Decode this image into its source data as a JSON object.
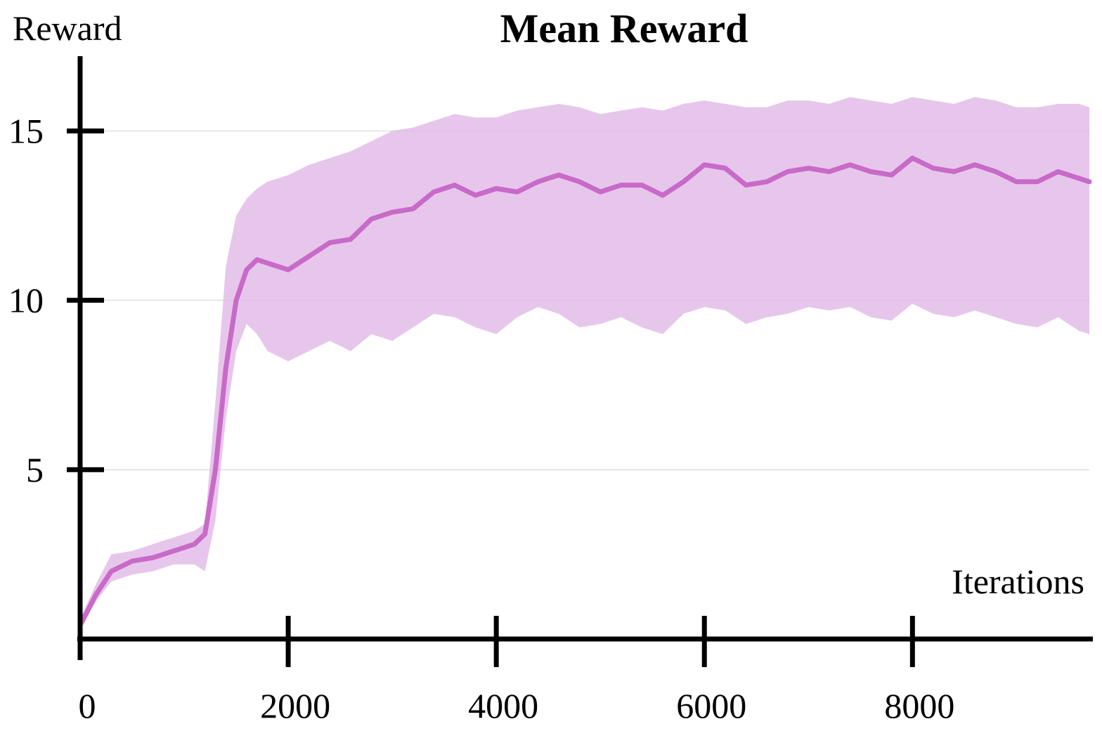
{
  "chart_data": {
    "type": "line",
    "title": "Mean Reward",
    "xlabel": "Iterations",
    "ylabel": "Reward",
    "xlim": [
      0,
      9700
    ],
    "ylim": [
      0,
      17
    ],
    "xticks": [
      0,
      2000,
      4000,
      6000,
      8000
    ],
    "yticks": [
      5,
      10,
      15
    ],
    "grid": true,
    "colors": {
      "mean": "#c86ac8",
      "band": "#dfb3e5"
    },
    "series": [
      {
        "x": [
          0,
          150,
          300,
          500,
          700,
          900,
          1100,
          1200,
          1300,
          1400,
          1500,
          1600,
          1700,
          1800,
          2000,
          2200,
          2400,
          2600,
          2800,
          3000,
          3200,
          3400,
          3600,
          3800,
          4000,
          4200,
          4400,
          4600,
          4800,
          5000,
          5200,
          5400,
          5600,
          5800,
          6000,
          6200,
          6400,
          6600,
          6800,
          7000,
          7200,
          7400,
          7600,
          7800,
          8000,
          8200,
          8400,
          8600,
          8800,
          9000,
          9200,
          9400,
          9600,
          9700
        ],
        "values": [
          0.4,
          1.3,
          2.0,
          2.3,
          2.4,
          2.6,
          2.8,
          3.1,
          5.0,
          8.0,
          10.0,
          10.9,
          11.2,
          11.1,
          10.9,
          11.3,
          11.7,
          11.8,
          12.4,
          12.6,
          12.7,
          13.2,
          13.4,
          13.1,
          13.3,
          13.2,
          13.5,
          13.7,
          13.5,
          13.2,
          13.4,
          13.4,
          13.1,
          13.5,
          14.0,
          13.9,
          13.4,
          13.5,
          13.8,
          13.9,
          13.8,
          14.0,
          13.8,
          13.7,
          14.2,
          13.9,
          13.8,
          14.0,
          13.8,
          13.5,
          13.5,
          13.8,
          13.6,
          13.5
        ],
        "lower": [
          0.3,
          1.1,
          1.7,
          1.9,
          2.0,
          2.2,
          2.2,
          2.0,
          3.5,
          6.5,
          8.5,
          9.3,
          9.0,
          8.5,
          8.2,
          8.5,
          8.8,
          8.5,
          9.0,
          8.8,
          9.2,
          9.6,
          9.5,
          9.2,
          9.0,
          9.5,
          9.8,
          9.6,
          9.2,
          9.3,
          9.5,
          9.2,
          9.0,
          9.6,
          9.8,
          9.7,
          9.3,
          9.5,
          9.6,
          9.8,
          9.7,
          9.8,
          9.5,
          9.4,
          9.9,
          9.6,
          9.5,
          9.7,
          9.5,
          9.3,
          9.2,
          9.5,
          9.1,
          9.0
        ],
        "upper": [
          0.6,
          1.6,
          2.5,
          2.6,
          2.8,
          3.0,
          3.2,
          3.4,
          7.0,
          11.0,
          12.5,
          13.0,
          13.3,
          13.5,
          13.7,
          14.0,
          14.2,
          14.4,
          14.7,
          15.0,
          15.1,
          15.3,
          15.5,
          15.4,
          15.4,
          15.6,
          15.7,
          15.8,
          15.7,
          15.5,
          15.6,
          15.7,
          15.6,
          15.8,
          15.9,
          15.8,
          15.7,
          15.7,
          15.9,
          15.9,
          15.8,
          16.0,
          15.9,
          15.8,
          16.0,
          15.9,
          15.8,
          16.0,
          15.9,
          15.7,
          15.7,
          15.8,
          15.8,
          15.7
        ]
      }
    ]
  }
}
